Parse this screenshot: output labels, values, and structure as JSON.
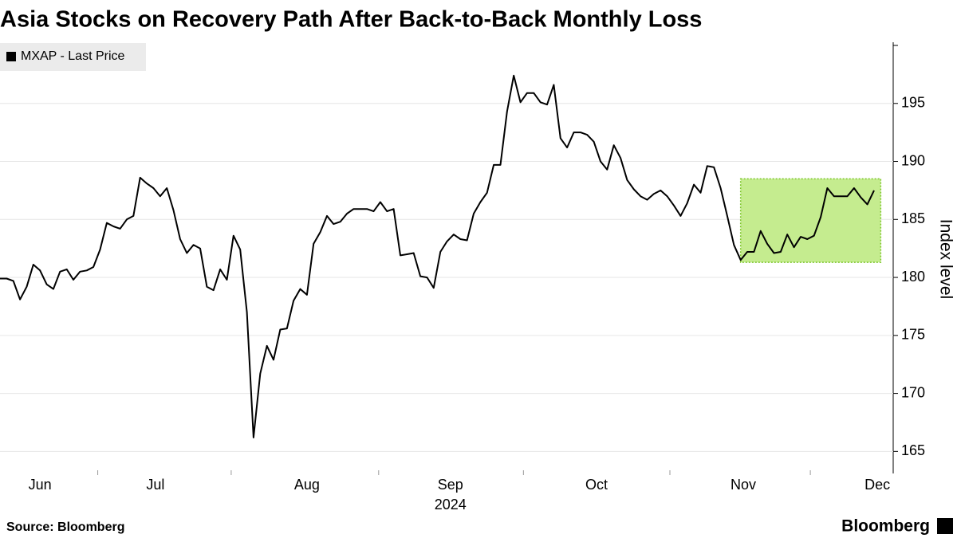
{
  "chart_data": {
    "type": "line",
    "title": "Asia Stocks on Recovery Path After Back-to-Back Monthly Loss",
    "ylabel": "Index level",
    "xlabel": "2024",
    "source": "Source: Bloomberg",
    "brand": "Bloomberg",
    "legend": "top-left",
    "grid": true,
    "series": [
      {
        "name": "MXAP - Last Price",
        "color": "#000000",
        "values": [
          179.9,
          179.9,
          179.7,
          178.1,
          179.2,
          181.1,
          180.6,
          179.4,
          179.0,
          180.5,
          180.7,
          179.8,
          180.5,
          180.6,
          180.9,
          182.4,
          184.7,
          184.4,
          184.2,
          185.0,
          185.3,
          188.6,
          188.1,
          187.7,
          187.0,
          187.7,
          185.8,
          183.3,
          182.1,
          182.8,
          182.5,
          179.2,
          178.9,
          180.7,
          179.8,
          183.6,
          182.4,
          177.0,
          166.2,
          171.7,
          174.1,
          172.9,
          175.5,
          175.6,
          178.0,
          179.0,
          178.5,
          182.9,
          183.9,
          185.3,
          184.6,
          184.8,
          185.5,
          185.9,
          185.9,
          185.9,
          185.7,
          186.5,
          185.7,
          185.9,
          181.9,
          182.0,
          182.1,
          180.1,
          180.0,
          179.1,
          182.2,
          183.1,
          183.7,
          183.3,
          183.2,
          185.5,
          186.5,
          187.3,
          189.7,
          189.7,
          194.3,
          197.4,
          195.1,
          195.9,
          195.9,
          195.1,
          194.9,
          196.6,
          192.0,
          191.2,
          192.5,
          192.5,
          192.3,
          191.7,
          190.0,
          189.3,
          191.4,
          190.3,
          188.4,
          187.6,
          187.0,
          186.7,
          187.2,
          187.5,
          187.0,
          186.2,
          185.3,
          186.4,
          188.0,
          187.3,
          189.6,
          189.5,
          187.7,
          185.3,
          182.8,
          181.5,
          182.2,
          182.2,
          184.0,
          182.9,
          182.1,
          182.2,
          183.7,
          182.6,
          183.5,
          183.3,
          183.6,
          185.2,
          187.7,
          187.0,
          187.0,
          187.0,
          187.7,
          186.9,
          186.3,
          187.5
        ]
      }
    ],
    "xlim": [
      0,
      131
    ],
    "xticks": [
      {
        "value": 6,
        "label": "Jun"
      },
      {
        "value": 23.3,
        "label": "Jul"
      },
      {
        "value": 46,
        "label": "Aug"
      },
      {
        "value": 67.5,
        "label": "Sep"
      },
      {
        "value": 89.4,
        "label": "Oct"
      },
      {
        "value": 111.4,
        "label": "Nov"
      },
      {
        "value": 131.5,
        "label": "Dec"
      }
    ],
    "ylim": [
      163.1,
      200
    ],
    "yticks": [
      165,
      170,
      175,
      180,
      185,
      190,
      195
    ],
    "highlight": {
      "x": [
        111,
        132
      ],
      "y": [
        181.3,
        188.5
      ],
      "color": "#c5ec8f"
    }
  }
}
